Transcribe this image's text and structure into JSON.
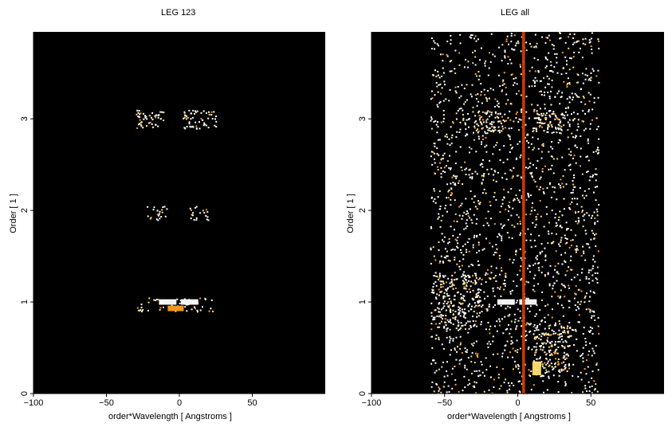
{
  "chart_data": [
    {
      "type": "heatmap",
      "title": "LEG 123",
      "xlabel": "order*Wavelength [ Angstroms ]",
      "ylabel": "Order [ 1 ]",
      "xlim": [
        -100,
        100
      ],
      "ylim": [
        0,
        3.95
      ],
      "x_ticks": [
        "−100",
        "−50",
        "0",
        "50"
      ],
      "y_ticks": [
        "0",
        "1",
        "2",
        "3"
      ],
      "x_tick_values": [
        -100,
        -50,
        0,
        50
      ],
      "y_tick_values": [
        0,
        1,
        2,
        3
      ],
      "background": "#000000",
      "colormap": [
        "#7a0000",
        "#d23c00",
        "#ff9a20",
        "#ffe070",
        "#ffffff"
      ],
      "clusters": [
        {
          "x": [
            -30,
            -10
          ],
          "y": [
            2.9,
            3.1
          ],
          "density": 0.35
        },
        {
          "x": [
            2,
            25
          ],
          "y": [
            2.9,
            3.1
          ],
          "density": 0.35
        },
        {
          "x": [
            -25,
            -8
          ],
          "y": [
            1.9,
            2.05
          ],
          "density": 0.25
        },
        {
          "x": [
            5,
            20
          ],
          "y": [
            1.9,
            2.05
          ],
          "density": 0.25
        },
        {
          "x": [
            -30,
            25
          ],
          "y": [
            0.9,
            1.05
          ],
          "density": 0.2
        }
      ],
      "bright_features": [
        {
          "x": [
            -14,
            -2
          ],
          "y": [
            0.97,
            1.03
          ],
          "color": "#ffffff"
        },
        {
          "x": [
            1,
            13
          ],
          "y": [
            0.97,
            1.03
          ],
          "color": "#ffffff"
        },
        {
          "x": [
            -8,
            3
          ],
          "y": [
            0.9,
            0.96
          ],
          "color": "#ff9a20"
        }
      ]
    },
    {
      "type": "heatmap",
      "title": "LEG all",
      "xlabel": "order*Wavelength [ Angstroms ]",
      "ylabel": "Order [ 1 ]",
      "xlim": [
        -100,
        100
      ],
      "ylim": [
        0,
        3.95
      ],
      "x_ticks": [
        "−100",
        "−50",
        "0",
        "50"
      ],
      "y_ticks": [
        "0",
        "1",
        "2",
        "3"
      ],
      "x_tick_values": [
        -100,
        -50,
        0,
        50
      ],
      "y_tick_values": [
        0,
        1,
        2,
        3
      ],
      "background": "#000000",
      "colormap": [
        "#7a0000",
        "#d23c00",
        "#ff9a20",
        "#ffe070",
        "#ffffff"
      ],
      "clusters": [
        {
          "x": [
            -60,
            55
          ],
          "y": [
            0,
            3.95
          ],
          "density": 0.12
        },
        {
          "x": [
            -30,
            -10
          ],
          "y": [
            2.85,
            3.1
          ],
          "density": 0.4
        },
        {
          "x": [
            10,
            30
          ],
          "y": [
            2.85,
            3.1
          ],
          "density": 0.4
        },
        {
          "x": [
            -60,
            -25
          ],
          "y": [
            0.7,
            1.3
          ],
          "density": 0.3
        },
        {
          "x": [
            10,
            35
          ],
          "y": [
            0.2,
            0.8
          ],
          "density": 0.3
        }
      ],
      "bright_features": [
        {
          "x": [
            -14,
            -2
          ],
          "y": [
            0.97,
            1.03
          ],
          "color": "#ffffff"
        },
        {
          "x": [
            1,
            13
          ],
          "y": [
            0.97,
            1.03
          ],
          "color": "#ffffff"
        },
        {
          "x": [
            3,
            5
          ],
          "y": [
            0,
            3.95
          ],
          "color": "#d23c00"
        },
        {
          "x": [
            10,
            16
          ],
          "y": [
            0.2,
            0.35
          ],
          "color": "#ffe070"
        }
      ]
    }
  ]
}
